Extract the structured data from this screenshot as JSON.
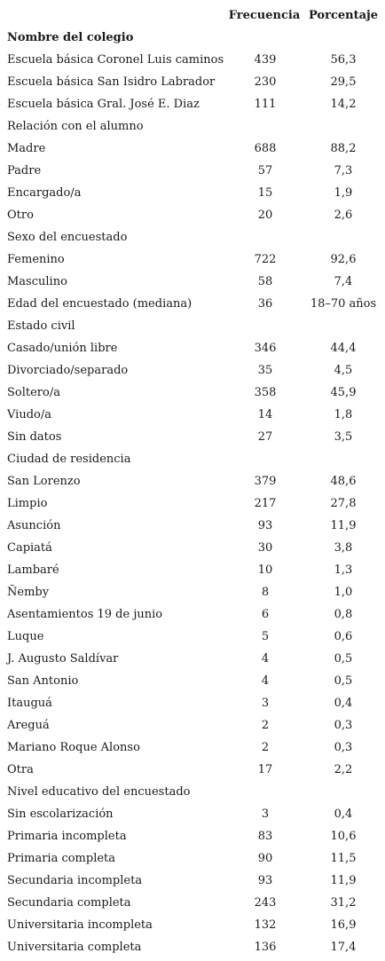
{
  "header": {
    "frecuencia": "Frecuencia",
    "porcentaje": "Porcentaje"
  },
  "rows": [
    {
      "label": "Nombre del colegio",
      "freq": "",
      "pct": "",
      "bold": true
    },
    {
      "label": "Escuela básica Coronel Luis caminos",
      "freq": "439",
      "pct": "56,3"
    },
    {
      "label": "Escuela básica San Isidro Labrador",
      "freq": "230",
      "pct": "29,5"
    },
    {
      "label": "Escuela básica Gral. José E. Diaz",
      "freq": "111",
      "pct": "14,2"
    },
    {
      "label": "Relación con el alumno",
      "freq": "",
      "pct": ""
    },
    {
      "label": "Madre",
      "freq": "688",
      "pct": "88,2"
    },
    {
      "label": "Padre",
      "freq": "57",
      "pct": "7,3"
    },
    {
      "label": "Encargado/a",
      "freq": "15",
      "pct": "1,9"
    },
    {
      "label": "Otro",
      "freq": "20",
      "pct": "2,6"
    },
    {
      "label": "Sexo del encuestado",
      "freq": "",
      "pct": ""
    },
    {
      "label": "Femenino",
      "freq": "722",
      "pct": "92,6"
    },
    {
      "label": "Masculino",
      "freq": "58",
      "pct": "7,4"
    },
    {
      "label": "Edad del encuestado (mediana)",
      "freq": "36",
      "pct": "18–70 años"
    },
    {
      "label": "Estado civil",
      "freq": "",
      "pct": ""
    },
    {
      "label": "Casado/unión libre",
      "freq": "346",
      "pct": "44,4"
    },
    {
      "label": "Divorciado/separado",
      "freq": "35",
      "pct": "4,5"
    },
    {
      "label": "Soltero/a",
      "freq": "358",
      "pct": "45,9"
    },
    {
      "label": "Viudo/a",
      "freq": "14",
      "pct": "1,8"
    },
    {
      "label": "Sin datos",
      "freq": "27",
      "pct": "3,5"
    },
    {
      "label": "Ciudad de residencia",
      "freq": "",
      "pct": ""
    },
    {
      "label": "San Lorenzo",
      "freq": "379",
      "pct": "48,6"
    },
    {
      "label": "Limpio",
      "freq": "217",
      "pct": "27,8"
    },
    {
      "label": "Asunción",
      "freq": "93",
      "pct": "11,9"
    },
    {
      "label": "Capiatá",
      "freq": "30",
      "pct": "3,8"
    },
    {
      "label": "Lambaré",
      "freq": "10",
      "pct": "1,3"
    },
    {
      "label": "Ñemby",
      "freq": "8",
      "pct": "1,0"
    },
    {
      "label": "Asentamientos 19 de junio",
      "freq": "6",
      "pct": "0,8"
    },
    {
      "label": "Luque",
      "freq": "5",
      "pct": "0,6"
    },
    {
      "label": "J. Augusto Saldívar",
      "freq": "4",
      "pct": "0,5"
    },
    {
      "label": "San Antonio",
      "freq": "4",
      "pct": "0,5"
    },
    {
      "label": "Itauguá",
      "freq": "3",
      "pct": "0,4"
    },
    {
      "label": "Areguá",
      "freq": "2",
      "pct": "0,3"
    },
    {
      "label": "Mariano Roque Alonso",
      "freq": "2",
      "pct": "0,3"
    },
    {
      "label": "Otra",
      "freq": "17",
      "pct": "2,2"
    },
    {
      "label": "Nivel educativo del encuestado",
      "freq": "",
      "pct": ""
    },
    {
      "label": "Sin escolarización",
      "freq": "3",
      "pct": "0,4"
    },
    {
      "label": "Primaria incompleta",
      "freq": "83",
      "pct": "10,6"
    },
    {
      "label": "Primaria completa",
      "freq": "90",
      "pct": "11,5"
    },
    {
      "label": "Secundaria incompleta",
      "freq": "93",
      "pct": "11,9"
    },
    {
      "label": "Secundaria completa",
      "freq": "243",
      "pct": "31,2"
    },
    {
      "label": "Universitaria incompleta",
      "freq": "132",
      "pct": "16,9"
    },
    {
      "label": "Universitaria completa",
      "freq": "136",
      "pct": "17,4"
    }
  ]
}
